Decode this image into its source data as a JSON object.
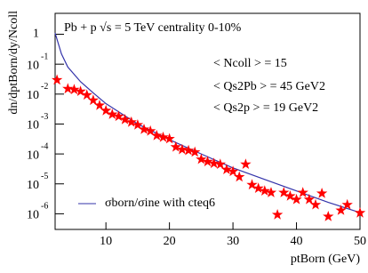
{
  "chart_data": {
    "type": "scatter-line",
    "title": "Pb + p √s = 5 TeV centrality 0-10%",
    "annotations": [
      "< Ncoll > = 15",
      "< Qs2Pb > = 45 GeV2",
      "< Qs2p > = 19 GeV2"
    ],
    "x_label": "ptBorn (GeV)",
    "y_label": "dn/dptBorn/dy/Ncoll",
    "log_y": true,
    "xlim": [
      2,
      50
    ],
    "xticks": [
      10,
      20,
      30,
      40,
      50
    ],
    "ylim": [
      3e-07,
      5
    ],
    "yticks": [
      1,
      {
        "value": 0.1,
        "label": "10",
        "exponent": "-1"
      },
      {
        "value": 0.01,
        "label": "10",
        "exponent": "-2"
      },
      {
        "value": 0.001,
        "label": "10",
        "exponent": "-3"
      },
      {
        "value": 0.0001,
        "label": "10",
        "exponent": "-4"
      },
      {
        "value": 1e-05,
        "label": "10",
        "exponent": "-5"
      },
      {
        "value": 1e-06,
        "label": "10",
        "exponent": "-6"
      }
    ],
    "points": {
      "color": "#ff0000",
      "x": [
        2.3,
        4,
        5,
        6,
        7,
        8,
        9,
        10,
        11,
        12,
        13,
        14,
        15,
        16,
        17,
        18,
        19,
        20,
        21,
        22,
        23,
        24,
        25,
        26,
        27,
        28,
        29,
        30,
        31,
        32,
        33,
        34,
        35,
        36,
        37,
        38,
        39,
        40,
        41,
        42,
        43,
        44,
        45,
        47,
        48,
        50
      ],
      "values": [
        0.0296,
        0.0151,
        0.0141,
        0.0123,
        0.0093,
        0.0062,
        0.0042,
        0.0028,
        0.0021,
        0.0018,
        0.0014,
        0.00115,
        0.00093,
        0.00066,
        0.00058,
        0.00041,
        0.00036,
        0.00032,
        0.00017,
        0.00014,
        0.00013,
        0.000115,
        6.6e-05,
        5.5e-05,
        4.8e-05,
        4.5e-05,
        3e-05,
        2.6e-05,
        1.7e-05,
        4.5e-05,
        9.3e-06,
        7.1e-06,
        5.8e-06,
        5.1e-06,
        9.3e-07,
        5.1e-06,
        3.9e-06,
        3e-06,
        5.1e-06,
        3e-06,
        2e-06,
        4.8e-06,
        8.1e-07,
        1.3e-06,
        2e-06,
        1.07e-06
      ]
    },
    "series": [
      {
        "name": "σborn/σine with cteq6",
        "color": "#3333aa",
        "x": [
          2,
          3,
          4,
          6,
          8,
          10,
          15,
          20,
          25,
          30,
          35,
          40,
          45,
          50
        ],
        "values": [
          1.1,
          0.22,
          0.08,
          0.026,
          0.011,
          0.0048,
          0.001,
          0.0003,
          0.0001,
          3.4e-05,
          1.4e-05,
          5.8e-06,
          2.4e-06,
          1.1e-06
        ]
      }
    ]
  }
}
